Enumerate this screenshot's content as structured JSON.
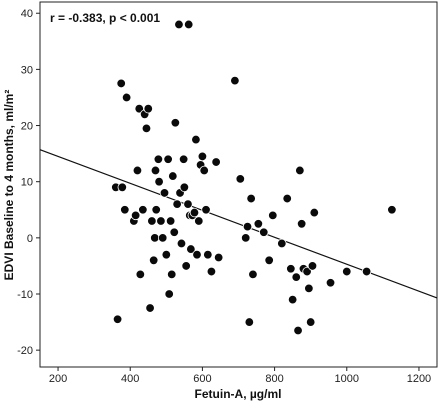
{
  "chart_data": {
    "type": "scatter",
    "title": "",
    "annotation": "r = -0.383, p < 0.001",
    "xlabel": "Fetuin-A, µg/ml",
    "ylabel": "EDVI Baseline to 4 months, ml/m²",
    "xlim": [
      150,
      1250
    ],
    "ylim": [
      -23,
      42
    ],
    "xticks": [
      200,
      400,
      600,
      800,
      1000,
      1200
    ],
    "yticks": [
      -20,
      -10,
      0,
      10,
      20,
      30,
      40
    ],
    "grid": false,
    "legend": "none",
    "regression_line": {
      "x": [
        150,
        1250
      ],
      "y": [
        15.7,
        -10.7
      ]
    },
    "points": [
      {
        "x": 360,
        "y": 9
      },
      {
        "x": 365,
        "y": -14.5
      },
      {
        "x": 375,
        "y": 27.5
      },
      {
        "x": 378,
        "y": 9
      },
      {
        "x": 385,
        "y": 5
      },
      {
        "x": 390,
        "y": 25
      },
      {
        "x": 410,
        "y": 3
      },
      {
        "x": 415,
        "y": 4
      },
      {
        "x": 420,
        "y": 12
      },
      {
        "x": 425,
        "y": 23
      },
      {
        "x": 428,
        "y": -6.5
      },
      {
        "x": 435,
        "y": 5
      },
      {
        "x": 440,
        "y": 22
      },
      {
        "x": 445,
        "y": 19.5
      },
      {
        "x": 450,
        "y": 23
      },
      {
        "x": 455,
        "y": -12.5
      },
      {
        "x": 460,
        "y": 3
      },
      {
        "x": 465,
        "y": -4
      },
      {
        "x": 468,
        "y": 0
      },
      {
        "x": 470,
        "y": 12
      },
      {
        "x": 472,
        "y": 5
      },
      {
        "x": 478,
        "y": 14
      },
      {
        "x": 480,
        "y": 10
      },
      {
        "x": 485,
        "y": 3
      },
      {
        "x": 490,
        "y": 0
      },
      {
        "x": 495,
        "y": 8
      },
      {
        "x": 500,
        "y": -3
      },
      {
        "x": 505,
        "y": 14
      },
      {
        "x": 508,
        "y": -10
      },
      {
        "x": 512,
        "y": 3
      },
      {
        "x": 515,
        "y": -6.5
      },
      {
        "x": 518,
        "y": 11
      },
      {
        "x": 522,
        "y": 1
      },
      {
        "x": 525,
        "y": 20.5
      },
      {
        "x": 530,
        "y": 6
      },
      {
        "x": 535,
        "y": 38
      },
      {
        "x": 538,
        "y": 8
      },
      {
        "x": 542,
        "y": -1
      },
      {
        "x": 548,
        "y": 14
      },
      {
        "x": 550,
        "y": 9
      },
      {
        "x": 555,
        "y": -5
      },
      {
        "x": 560,
        "y": 6
      },
      {
        "x": 562,
        "y": 38
      },
      {
        "x": 565,
        "y": 4
      },
      {
        "x": 568,
        "y": -2
      },
      {
        "x": 572,
        "y": 4
      },
      {
        "x": 578,
        "y": 4.5
      },
      {
        "x": 582,
        "y": 17.5
      },
      {
        "x": 585,
        "y": -3
      },
      {
        "x": 590,
        "y": 3
      },
      {
        "x": 595,
        "y": 13
      },
      {
        "x": 600,
        "y": 14.5
      },
      {
        "x": 605,
        "y": 12
      },
      {
        "x": 610,
        "y": 5
      },
      {
        "x": 615,
        "y": -3
      },
      {
        "x": 625,
        "y": -6
      },
      {
        "x": 638,
        "y": 13.5
      },
      {
        "x": 645,
        "y": -3.5
      },
      {
        "x": 690,
        "y": 28
      },
      {
        "x": 705,
        "y": 10.5
      },
      {
        "x": 720,
        "y": 0
      },
      {
        "x": 725,
        "y": 2
      },
      {
        "x": 730,
        "y": -15
      },
      {
        "x": 735,
        "y": 7
      },
      {
        "x": 740,
        "y": -6.5
      },
      {
        "x": 755,
        "y": 2.5
      },
      {
        "x": 770,
        "y": 1
      },
      {
        "x": 785,
        "y": -4
      },
      {
        "x": 795,
        "y": 4
      },
      {
        "x": 820,
        "y": -1
      },
      {
        "x": 835,
        "y": 7
      },
      {
        "x": 845,
        "y": -5.5
      },
      {
        "x": 850,
        "y": -11
      },
      {
        "x": 860,
        "y": -7
      },
      {
        "x": 865,
        "y": -16.5
      },
      {
        "x": 870,
        "y": 12
      },
      {
        "x": 875,
        "y": 2.5
      },
      {
        "x": 880,
        "y": -5.5
      },
      {
        "x": 890,
        "y": -6
      },
      {
        "x": 895,
        "y": -9
      },
      {
        "x": 900,
        "y": -15
      },
      {
        "x": 905,
        "y": -5
      },
      {
        "x": 910,
        "y": 4.5
      },
      {
        "x": 955,
        "y": -8
      },
      {
        "x": 1000,
        "y": -6
      },
      {
        "x": 1055,
        "y": -6
      },
      {
        "x": 1125,
        "y": 5
      }
    ]
  }
}
